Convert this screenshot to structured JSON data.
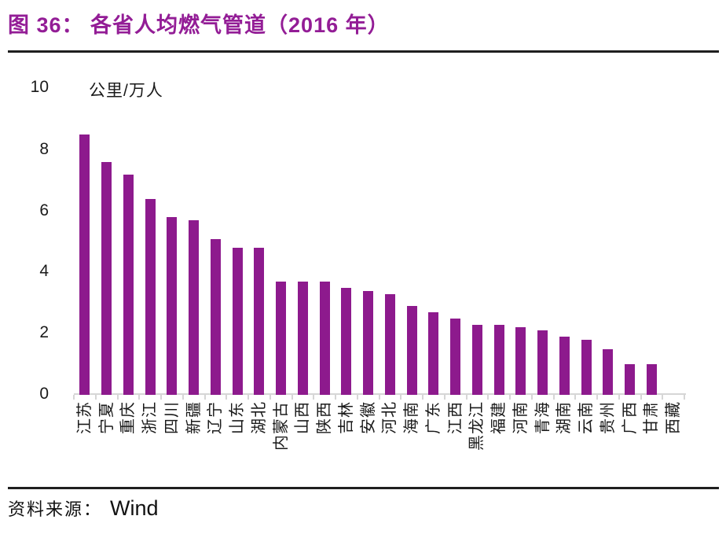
{
  "figure": {
    "title": "图 36： 各省人均燃气管道（2016 年）"
  },
  "chart_data": {
    "type": "bar",
    "title": "各省人均燃气管道（2016 年）",
    "xlabel": "",
    "ylabel": "公里/万人",
    "unit_label": "公里/万人",
    "categories": [
      "江苏",
      "宁夏",
      "重庆",
      "浙江",
      "四川",
      "新疆",
      "辽宁",
      "山东",
      "湖北",
      "内蒙古",
      "山西",
      "陕西",
      "吉林",
      "安徽",
      "河北",
      "海南",
      "广东",
      "江西",
      "黑龙江",
      "福建",
      "河南",
      "青海",
      "湖南",
      "云南",
      "贵州",
      "广西",
      "甘肃",
      "西藏"
    ],
    "values": [
      8.5,
      7.6,
      7.2,
      6.4,
      5.8,
      5.7,
      5.1,
      4.8,
      4.8,
      3.7,
      3.7,
      3.7,
      3.5,
      3.4,
      3.3,
      2.9,
      2.7,
      2.5,
      2.3,
      2.3,
      2.2,
      2.1,
      1.9,
      1.8,
      1.5,
      1.0,
      1.0,
      0.0
    ],
    "y_ticks": [
      10,
      8,
      6,
      4,
      2,
      0
    ],
    "ylim": [
      0,
      10
    ],
    "grid": false,
    "legend": false
  },
  "source": {
    "label": "资料来源：",
    "name": "Wind"
  },
  "colors": {
    "title": "#931d96",
    "bar": "#8d1a8d",
    "axis": "#d6d6d6",
    "rule": "#1f1f1f",
    "text": "#1a1a1a"
  }
}
